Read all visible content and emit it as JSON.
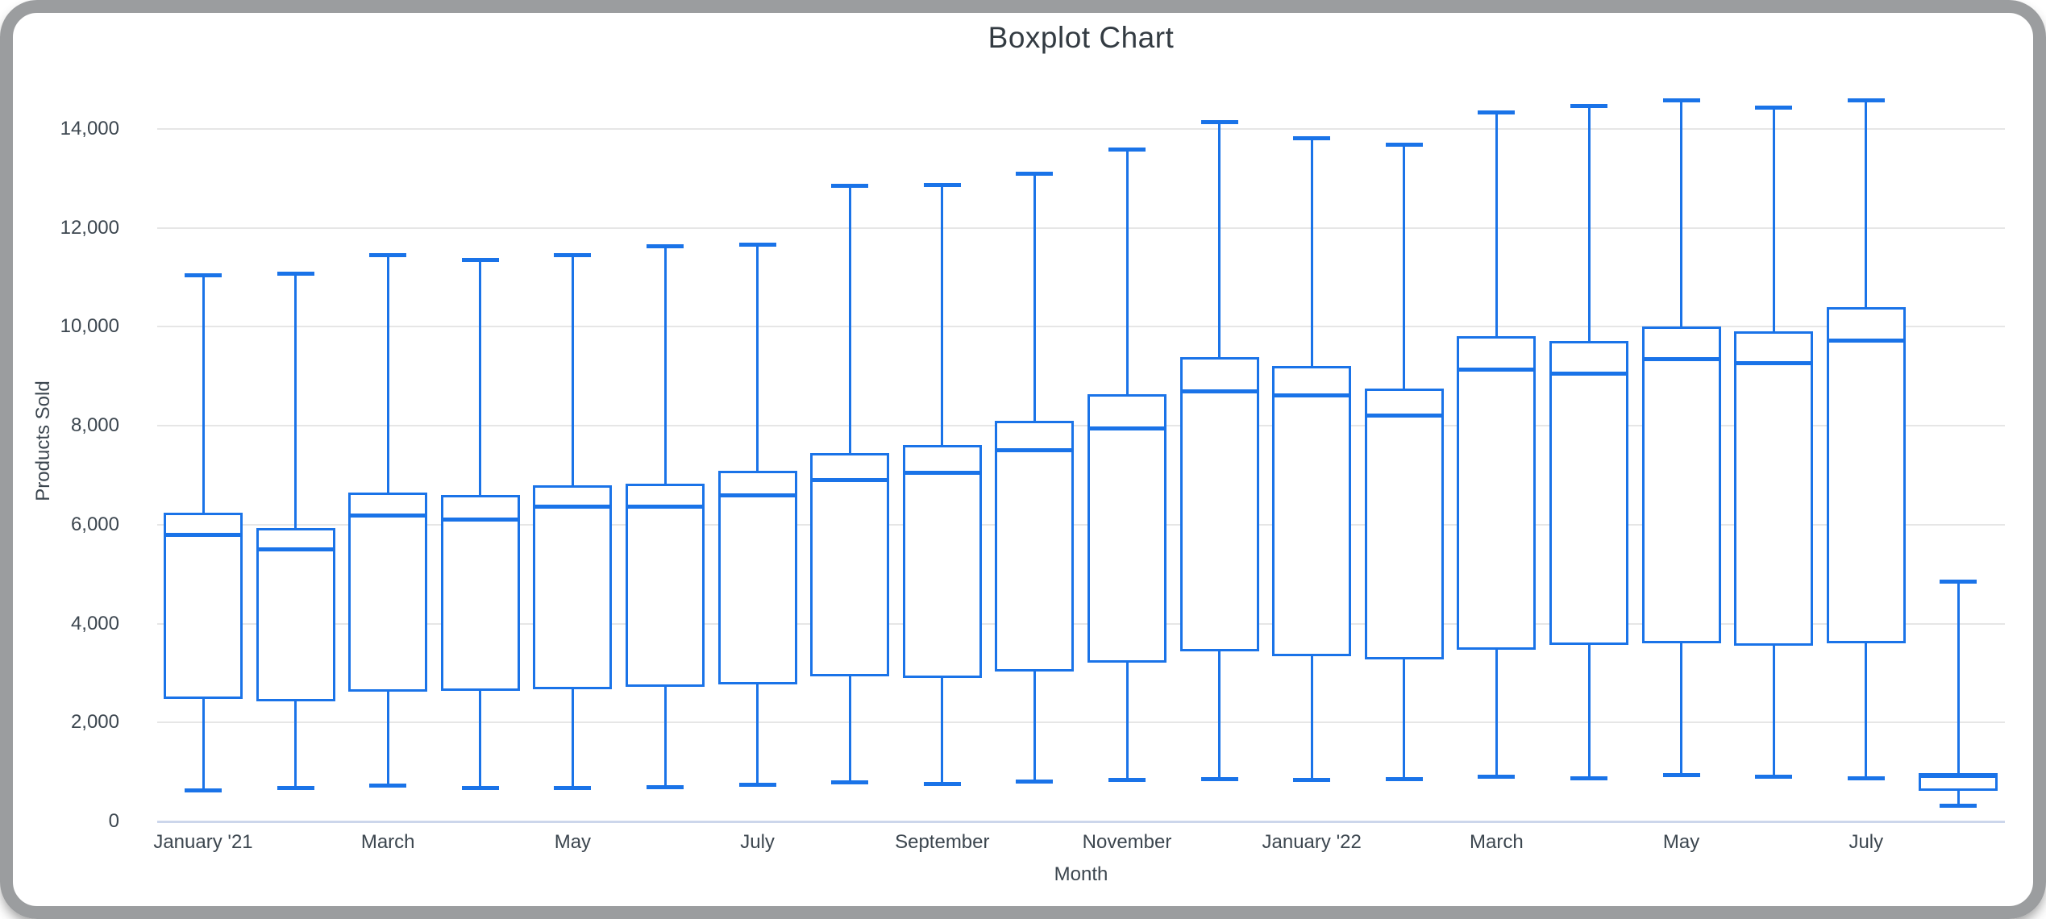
{
  "window": {
    "frame_color": "#9b9d9f",
    "background": "#ffffff"
  },
  "chart_data": {
    "type": "boxplot",
    "title": "Boxplot Chart",
    "xlabel": "Month",
    "ylabel": "Products Sold",
    "series_color": "#1a73e8",
    "box_fill": "#ffffff",
    "gridline_color": "#e6e6e6",
    "axis_line_color": "#ccd6eb",
    "text_color": "#3c464f",
    "ylim": [
      0,
      15385
    ],
    "grid": true,
    "legend": "none",
    "y_ticks": [
      {
        "value": 0,
        "label": "0"
      },
      {
        "value": 2000,
        "label": "2,000"
      },
      {
        "value": 4000,
        "label": "4,000"
      },
      {
        "value": 6000,
        "label": "6,000"
      },
      {
        "value": 8000,
        "label": "8,000"
      },
      {
        "value": 10000,
        "label": "10,000"
      },
      {
        "value": 12000,
        "label": "12,000"
      },
      {
        "value": 14000,
        "label": "14,000"
      }
    ],
    "x_ticks": [
      {
        "slot": 0,
        "label": "January '21"
      },
      {
        "slot": 2,
        "label": "March"
      },
      {
        "slot": 4,
        "label": "May"
      },
      {
        "slot": 6,
        "label": "July"
      },
      {
        "slot": 8,
        "label": "September"
      },
      {
        "slot": 10,
        "label": "November"
      },
      {
        "slot": 12,
        "label": "January '22"
      },
      {
        "slot": 14,
        "label": "March"
      },
      {
        "slot": 16,
        "label": "May"
      },
      {
        "slot": 18,
        "label": "July"
      }
    ],
    "boxes": [
      {
        "min": 620,
        "q1": 2500,
        "median": 5790,
        "q3": 6210,
        "max": 11050
      },
      {
        "min": 680,
        "q1": 2450,
        "median": 5500,
        "q3": 5900,
        "max": 11080
      },
      {
        "min": 720,
        "q1": 2650,
        "median": 6180,
        "q3": 6620,
        "max": 11450
      },
      {
        "min": 680,
        "q1": 2660,
        "median": 6110,
        "q3": 6570,
        "max": 11360
      },
      {
        "min": 680,
        "q1": 2690,
        "median": 6370,
        "q3": 6770,
        "max": 11450
      },
      {
        "min": 690,
        "q1": 2740,
        "median": 6370,
        "q3": 6810,
        "max": 11630
      },
      {
        "min": 745,
        "q1": 2800,
        "median": 6600,
        "q3": 7070,
        "max": 11660
      },
      {
        "min": 790,
        "q1": 2950,
        "median": 6900,
        "q3": 7430,
        "max": 12850
      },
      {
        "min": 760,
        "q1": 2920,
        "median": 7050,
        "q3": 7580,
        "max": 12870
      },
      {
        "min": 810,
        "q1": 3060,
        "median": 7500,
        "q3": 8070,
        "max": 13100
      },
      {
        "min": 840,
        "q1": 3240,
        "median": 7950,
        "q3": 8610,
        "max": 13590
      },
      {
        "min": 860,
        "q1": 3460,
        "median": 8700,
        "q3": 9360,
        "max": 14140
      },
      {
        "min": 840,
        "q1": 3360,
        "median": 8620,
        "q3": 9190,
        "max": 13820
      },
      {
        "min": 860,
        "q1": 3300,
        "median": 8210,
        "q3": 8720,
        "max": 13680
      },
      {
        "min": 900,
        "q1": 3500,
        "median": 9140,
        "q3": 9790,
        "max": 14330
      },
      {
        "min": 870,
        "q1": 3600,
        "median": 9060,
        "q3": 9690,
        "max": 14470
      },
      {
        "min": 930,
        "q1": 3620,
        "median": 9350,
        "q3": 9990,
        "max": 14580
      },
      {
        "min": 900,
        "q1": 3580,
        "median": 9270,
        "q3": 9890,
        "max": 14430
      },
      {
        "min": 880,
        "q1": 3630,
        "median": 9730,
        "q3": 10370,
        "max": 14580
      },
      {
        "min": 310,
        "q1": 640,
        "median": 920,
        "q3": 950,
        "max": 4850
      }
    ]
  }
}
